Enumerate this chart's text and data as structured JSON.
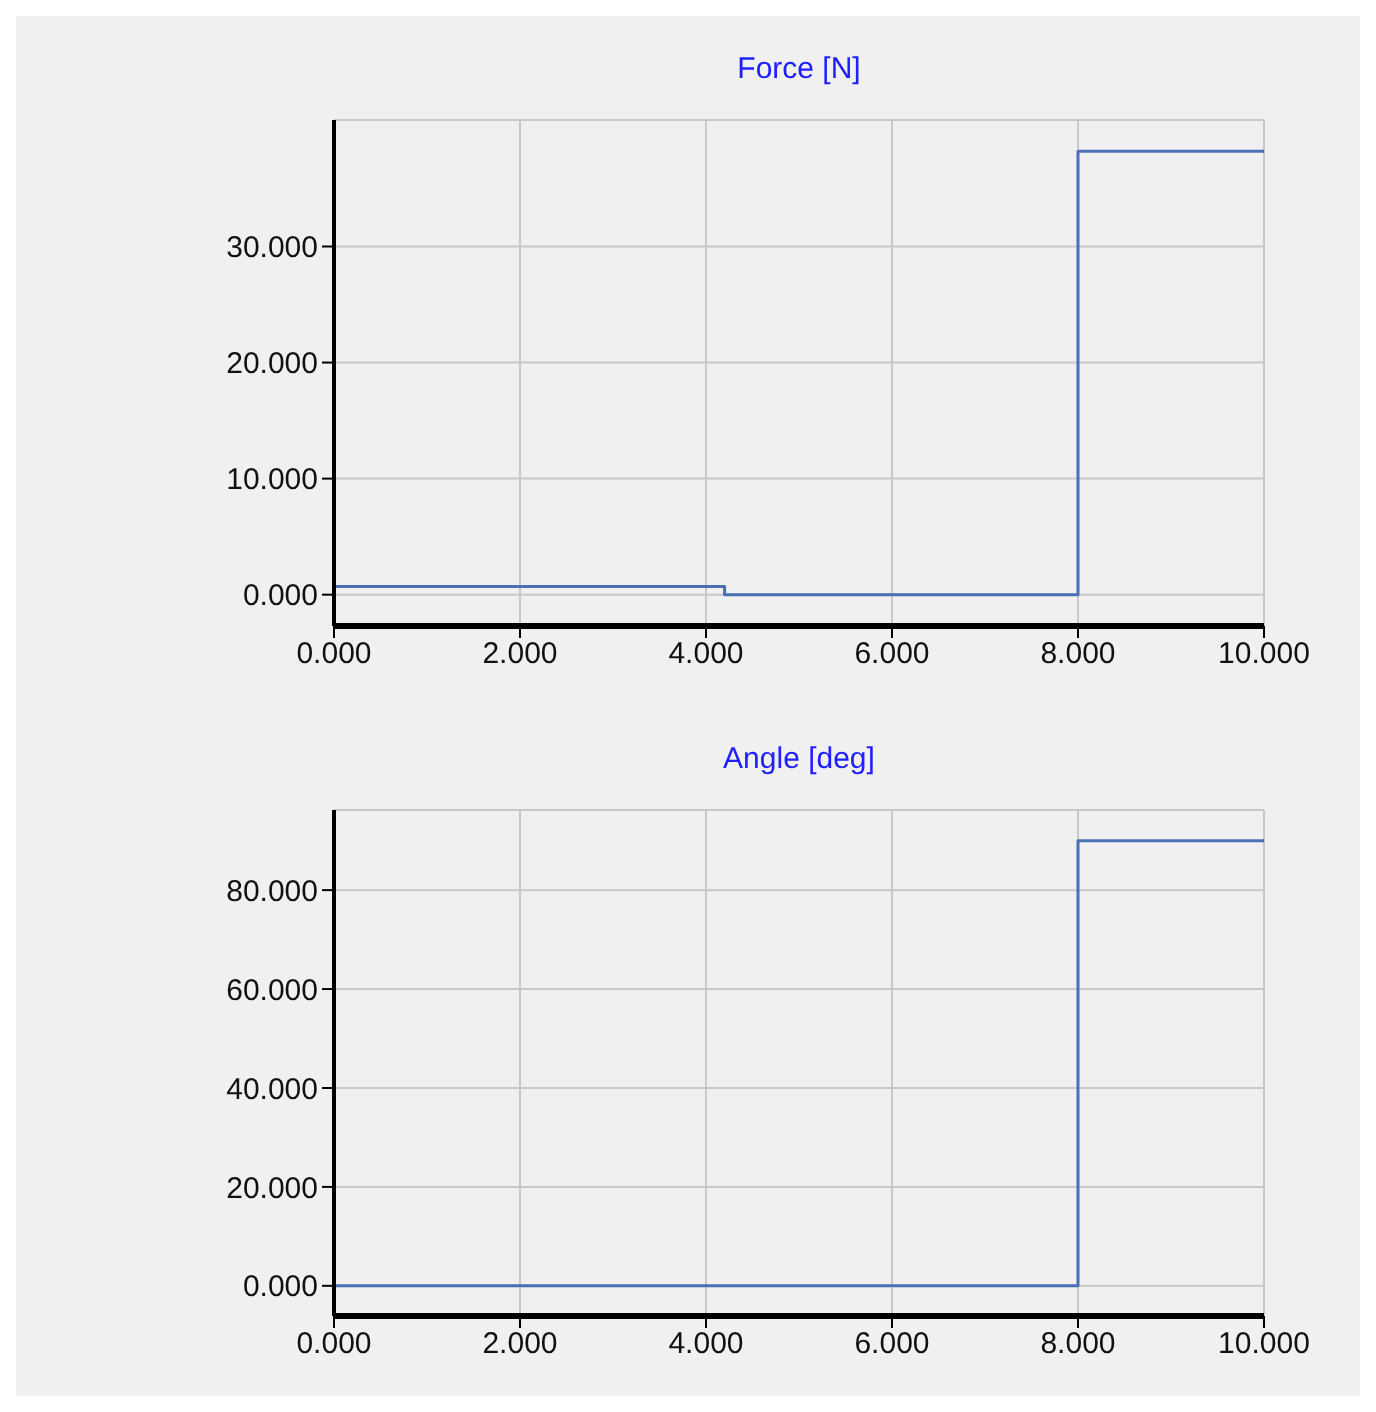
{
  "chart_data": [
    {
      "type": "step",
      "title": "Force [N]",
      "x": [
        0,
        4.2,
        8,
        10
      ],
      "values": [
        0.7,
        0,
        38.2,
        38.2
      ],
      "color": "#4a6fb5",
      "xlim": [
        0,
        10
      ],
      "xticks": [
        {
          "value": 0,
          "label": "0.000"
        },
        {
          "value": 2,
          "label": "2.000"
        },
        {
          "value": 4,
          "label": "4.000"
        },
        {
          "value": 6,
          "label": "6.000"
        },
        {
          "value": 8,
          "label": "8.000"
        },
        {
          "value": 10,
          "label": "10.000"
        }
      ],
      "ylim": [
        -2.7,
        40.9
      ],
      "yticks": [
        {
          "value": 0,
          "label": "0.000"
        },
        {
          "value": 10,
          "label": "10.000"
        },
        {
          "value": 20,
          "label": "20.000"
        },
        {
          "value": 30,
          "label": "30.000"
        }
      ],
      "grid": true
    },
    {
      "type": "step",
      "title": "Angle [deg]",
      "x": [
        0,
        8,
        10
      ],
      "values": [
        0,
        90,
        90
      ],
      "color": "#4a6fb5",
      "xlim": [
        0,
        10
      ],
      "xticks": [
        {
          "value": 0,
          "label": "0.000"
        },
        {
          "value": 2,
          "label": "2.000"
        },
        {
          "value": 4,
          "label": "4.000"
        },
        {
          "value": 6,
          "label": "6.000"
        },
        {
          "value": 8,
          "label": "8.000"
        },
        {
          "value": 10,
          "label": "10.000"
        }
      ],
      "ylim": [
        -6.1,
        96.2
      ],
      "yticks": [
        {
          "value": 0,
          "label": "0.000"
        },
        {
          "value": 20,
          "label": "20.000"
        },
        {
          "value": 40,
          "label": "40.000"
        },
        {
          "value": 60,
          "label": "60.000"
        },
        {
          "value": 80,
          "label": "80.000"
        }
      ],
      "grid": true
    }
  ]
}
